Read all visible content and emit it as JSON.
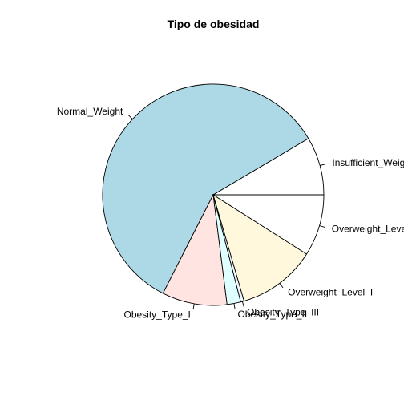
{
  "chart_data": {
    "type": "pie",
    "title": "Tipo de obesidad",
    "start_angle_deg": 0,
    "direction": "counterclockwise",
    "slices": [
      {
        "label": "Insufficient_Weight",
        "value": 8.5,
        "color": "#ffffff"
      },
      {
        "label": "Normal_Weight",
        "value": 59.0,
        "color": "#add8e6"
      },
      {
        "label": "Obesity_Type_I",
        "value": 9.5,
        "color": "#ffe4e1"
      },
      {
        "label": "Obesity_Type_II",
        "value": 2.0,
        "color": "#e0ffff"
      },
      {
        "label": "Obesity_Type_III",
        "value": 0.5,
        "color": "#f0f8ff"
      },
      {
        "label": "Overweight_Level_I",
        "value": 11.5,
        "color": "#fff8dc"
      },
      {
        "label": "Overweight_Level_II",
        "value": 9.0,
        "color": "#ffffff"
      }
    ]
  }
}
